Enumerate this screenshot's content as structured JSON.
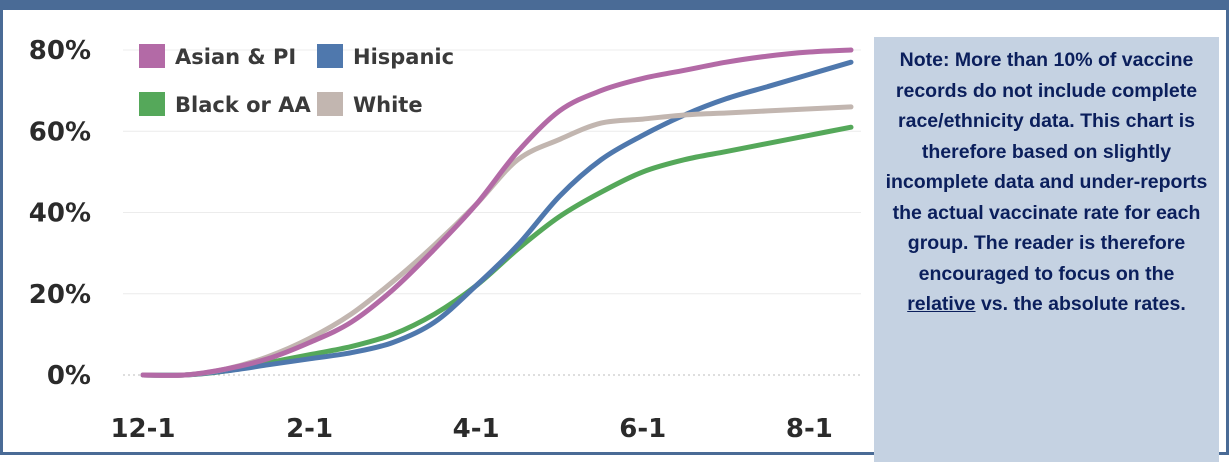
{
  "note": {
    "before": "Note: More than 10% of vaccine records do not include complete race/ethnicity data. This chart is therefore based on slightly incomplete data and under-reports the actual vaccinate rate for each group. The reader is therefore encouraged to focus on the ",
    "emphasis": "relative",
    "after": " vs. the absolute rates."
  },
  "chart_data": {
    "type": "line",
    "title": "",
    "xlabel": "",
    "ylabel": "",
    "x_tick_labels": [
      "12-1",
      "2-1",
      "4-1",
      "6-1",
      "8-1"
    ],
    "y_tick_labels": [
      "0%",
      "20%",
      "40%",
      "60%",
      "80%"
    ],
    "ylim": [
      0,
      80
    ],
    "y_unit": "%",
    "grid": "horizontal",
    "legend_position": "top-left",
    "x": [
      "12-1",
      "12-15",
      "1-1",
      "1-15",
      "2-1",
      "2-15",
      "3-1",
      "3-15",
      "4-1",
      "4-15",
      "5-1",
      "5-15",
      "6-1",
      "6-15",
      "7-1",
      "7-15",
      "8-1",
      "8-15"
    ],
    "series": [
      {
        "name": "Asian & PI",
        "color": "#b36aa6",
        "values": [
          0,
          0,
          1.5,
          4,
          8,
          13,
          21,
          31,
          42,
          55,
          65,
          70,
          73,
          75,
          77,
          78.5,
          79.5,
          80
        ]
      },
      {
        "name": "Hispanic",
        "color": "#4f78ad",
        "values": [
          0,
          0,
          1,
          2.5,
          4,
          5.5,
          8,
          13,
          22,
          32,
          44,
          53,
          59,
          64,
          68,
          71,
          74,
          77
        ]
      },
      {
        "name": "Black or AA",
        "color": "#55a85a",
        "values": [
          0,
          0,
          1,
          3,
          5,
          7,
          10,
          15,
          22,
          31,
          39,
          45,
          50,
          53,
          55,
          57,
          59,
          61
        ]
      },
      {
        "name": "White",
        "color": "#c2b6b0",
        "values": [
          0,
          0,
          1.5,
          4.5,
          9,
          15,
          23,
          32,
          42,
          53,
          58,
          62,
          63,
          64,
          64.5,
          65,
          65.5,
          66
        ]
      }
    ]
  }
}
